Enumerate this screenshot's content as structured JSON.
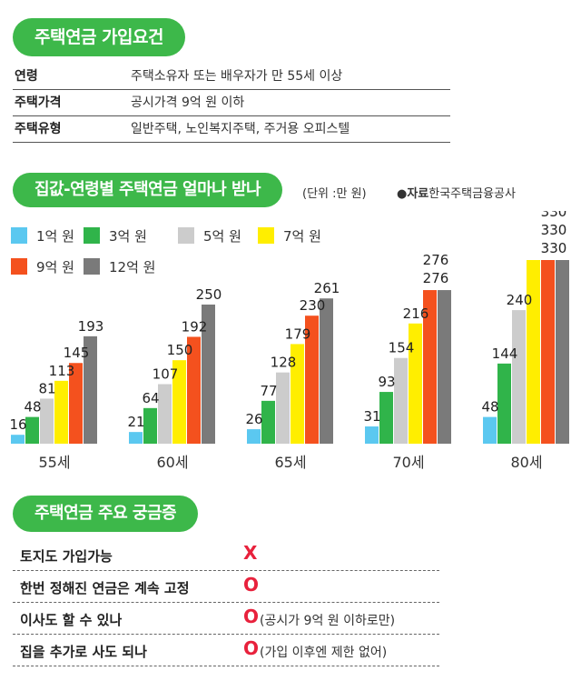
{
  "section1": {
    "title": "주택연금 가입요건",
    "rows": [
      {
        "label": "연령",
        "value": "주택소유자 또는 배우자가 만 55세 이상"
      },
      {
        "label": "주택가격",
        "value": "공시가격 9억 원 이하"
      },
      {
        "label": "주택유형",
        "value": "일반주택, 노인복지주택, 주거용 오피스텔"
      }
    ]
  },
  "section2": {
    "title": "집값-연령별 주택연금 얼마나 받나",
    "unit_note": "(단위 :만 원)",
    "source_bullet": "●자료",
    "source_name": "한국주택금융공사"
  },
  "chart_data": {
    "type": "bar",
    "categories": [
      "55세",
      "60세",
      "65세",
      "70세",
      "80세"
    ],
    "series": [
      {
        "name": "1억 원",
        "color": "#5bc8f0",
        "values": [
          16,
          21,
          26,
          31,
          48
        ]
      },
      {
        "name": "3억 원",
        "color": "#30b44a",
        "values": [
          48,
          64,
          77,
          93,
          144
        ]
      },
      {
        "name": "5억 원",
        "color": "#cccccc",
        "values": [
          81,
          107,
          128,
          154,
          240
        ]
      },
      {
        "name": "7억 원",
        "color": "#ffee00",
        "values": [
          113,
          150,
          179,
          216,
          330
        ]
      },
      {
        "name": "9억 원",
        "color": "#f4511e",
        "values": [
          145,
          192,
          230,
          276,
          330
        ]
      },
      {
        "name": "12억 원",
        "color": "#7a7a7a",
        "values": [
          193,
          250,
          261,
          276,
          330
        ]
      }
    ],
    "ylim": [
      0,
      340
    ],
    "legend": "top-left",
    "grid": false
  },
  "section3": {
    "title": "주택연금 주요 궁금증",
    "rows": [
      {
        "question": "토지도 가입가능",
        "answer": "X",
        "note": ""
      },
      {
        "question": "한번 정해진 연금은 계속 고정",
        "answer": "O",
        "note": ""
      },
      {
        "question": "이사도 할 수 있나",
        "answer": "O",
        "note": "(공시가 9억 원 이하로만)"
      },
      {
        "question": "집을 추가로 사도 되나",
        "answer": "O",
        "note": "(가입 이후엔 제한 없어)"
      }
    ]
  }
}
